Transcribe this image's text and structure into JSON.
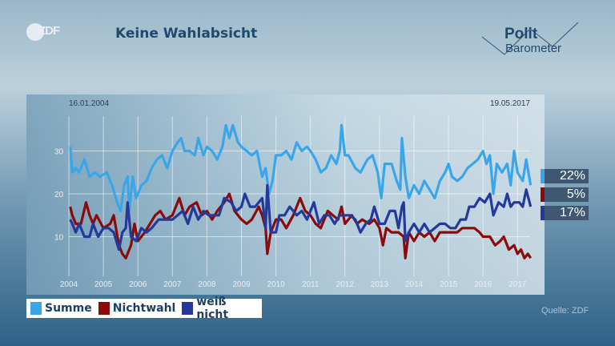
{
  "header": {
    "logo": "ZDF",
    "title": "Keine Wahlabsicht",
    "brand_line1": "Polit",
    "brand_line2": "Barometer"
  },
  "footer": {
    "source": "Quelle: ZDF"
  },
  "current_values": [
    {
      "label": "22%",
      "color": "#3aa6ea"
    },
    {
      "label": "5%",
      "color": "#8b0a0a"
    },
    {
      "label": "17%",
      "color": "#24399a"
    }
  ],
  "chart_data": {
    "type": "line",
    "title": "Keine Wahlabsicht",
    "start_label": "16.01.2004",
    "end_label": "19.05.2017",
    "xlim": [
      2004.04,
      2017.38
    ],
    "ylim": [
      0,
      36
    ],
    "xticks": [
      "2004",
      "2005",
      "2006",
      "2007",
      "2008",
      "2009",
      "2010",
      "2011",
      "2012",
      "2013",
      "2014",
      "2015",
      "2016",
      "2017"
    ],
    "yticks": [
      "10",
      "20",
      "30"
    ],
    "grid": true,
    "legend_placement": "bottom-left",
    "series": [
      {
        "name": "Summe",
        "color": "#3aa6ea",
        "points": [
          [
            2004.04,
            31
          ],
          [
            2004.1,
            25
          ],
          [
            2004.2,
            26
          ],
          [
            2004.3,
            25
          ],
          [
            2004.45,
            28
          ],
          [
            2004.6,
            24
          ],
          [
            2004.75,
            25
          ],
          [
            2004.9,
            24
          ],
          [
            2005.1,
            25
          ],
          [
            2005.25,
            22
          ],
          [
            2005.4,
            18
          ],
          [
            2005.5,
            16
          ],
          [
            2005.6,
            22
          ],
          [
            2005.7,
            24
          ],
          [
            2005.75,
            16
          ],
          [
            2005.85,
            24
          ],
          [
            2005.95,
            19
          ],
          [
            2006.1,
            22
          ],
          [
            2006.25,
            23
          ],
          [
            2006.4,
            26
          ],
          [
            2006.55,
            28
          ],
          [
            2006.7,
            29
          ],
          [
            2006.85,
            26
          ],
          [
            2007.0,
            30
          ],
          [
            2007.15,
            32
          ],
          [
            2007.25,
            33
          ],
          [
            2007.35,
            30
          ],
          [
            2007.5,
            30
          ],
          [
            2007.65,
            29
          ],
          [
            2007.75,
            33
          ],
          [
            2007.9,
            29
          ],
          [
            2008.0,
            31
          ],
          [
            2008.15,
            30
          ],
          [
            2008.3,
            28
          ],
          [
            2008.45,
            31
          ],
          [
            2008.55,
            36
          ],
          [
            2008.65,
            33
          ],
          [
            2008.75,
            36
          ],
          [
            2008.9,
            32
          ],
          [
            2009.0,
            31
          ],
          [
            2009.15,
            30
          ],
          [
            2009.3,
            29
          ],
          [
            2009.45,
            30
          ],
          [
            2009.6,
            24
          ],
          [
            2009.7,
            26
          ],
          [
            2009.8,
            20
          ],
          [
            2009.9,
            23
          ],
          [
            2010.0,
            29
          ],
          [
            2010.15,
            29
          ],
          [
            2010.3,
            30
          ],
          [
            2010.45,
            28
          ],
          [
            2010.6,
            32
          ],
          [
            2010.75,
            30
          ],
          [
            2010.9,
            31
          ],
          [
            2011.0,
            30
          ],
          [
            2011.15,
            28
          ],
          [
            2011.3,
            25
          ],
          [
            2011.45,
            26
          ],
          [
            2011.6,
            29
          ],
          [
            2011.75,
            27
          ],
          [
            2011.85,
            30
          ],
          [
            2011.9,
            36
          ],
          [
            2012.0,
            29
          ],
          [
            2012.1,
            29
          ],
          [
            2012.3,
            26
          ],
          [
            2012.45,
            25
          ],
          [
            2012.65,
            28
          ],
          [
            2012.8,
            29
          ],
          [
            2012.95,
            25
          ],
          [
            2013.05,
            19
          ],
          [
            2013.15,
            27
          ],
          [
            2013.35,
            27
          ],
          [
            2013.5,
            23
          ],
          [
            2013.6,
            21
          ],
          [
            2013.65,
            33
          ],
          [
            2013.75,
            24
          ],
          [
            2013.85,
            19
          ],
          [
            2014.0,
            22
          ],
          [
            2014.15,
            20
          ],
          [
            2014.3,
            23
          ],
          [
            2014.45,
            21
          ],
          [
            2014.6,
            19
          ],
          [
            2014.75,
            23
          ],
          [
            2014.9,
            25
          ],
          [
            2015.0,
            27
          ],
          [
            2015.1,
            24
          ],
          [
            2015.25,
            23
          ],
          [
            2015.4,
            24
          ],
          [
            2015.55,
            26
          ],
          [
            2015.7,
            27
          ],
          [
            2015.85,
            28
          ],
          [
            2016.0,
            30
          ],
          [
            2016.1,
            27
          ],
          [
            2016.2,
            29
          ],
          [
            2016.3,
            20
          ],
          [
            2016.4,
            27
          ],
          [
            2016.55,
            25
          ],
          [
            2016.7,
            27
          ],
          [
            2016.8,
            22
          ],
          [
            2016.9,
            30
          ],
          [
            2017.0,
            25
          ],
          [
            2017.15,
            23
          ],
          [
            2017.25,
            28
          ],
          [
            2017.38,
            22
          ]
        ]
      },
      {
        "name": "Nichtwahl",
        "color": "#8b0a0a",
        "points": [
          [
            2004.04,
            17
          ],
          [
            2004.1,
            15
          ],
          [
            2004.2,
            13
          ],
          [
            2004.35,
            13
          ],
          [
            2004.5,
            18
          ],
          [
            2004.6,
            15
          ],
          [
            2004.7,
            13
          ],
          [
            2004.8,
            15
          ],
          [
            2005.0,
            12
          ],
          [
            2005.2,
            13
          ],
          [
            2005.3,
            15
          ],
          [
            2005.45,
            8
          ],
          [
            2005.55,
            6
          ],
          [
            2005.65,
            5
          ],
          [
            2005.8,
            8
          ],
          [
            2005.9,
            13
          ],
          [
            2006.0,
            9
          ],
          [
            2006.2,
            11
          ],
          [
            2006.35,
            13
          ],
          [
            2006.5,
            15
          ],
          [
            2006.65,
            16
          ],
          [
            2006.8,
            14
          ],
          [
            2007.0,
            15
          ],
          [
            2007.2,
            19
          ],
          [
            2007.35,
            15
          ],
          [
            2007.5,
            17
          ],
          [
            2007.7,
            18
          ],
          [
            2007.85,
            15
          ],
          [
            2008.0,
            16
          ],
          [
            2008.15,
            14
          ],
          [
            2008.3,
            16
          ],
          [
            2008.5,
            18
          ],
          [
            2008.65,
            20
          ],
          [
            2008.8,
            16
          ],
          [
            2009.0,
            14
          ],
          [
            2009.15,
            13
          ],
          [
            2009.3,
            14
          ],
          [
            2009.5,
            17
          ],
          [
            2009.6,
            15
          ],
          [
            2009.7,
            12
          ],
          [
            2009.75,
            6
          ],
          [
            2009.85,
            11
          ],
          [
            2010.0,
            14
          ],
          [
            2010.15,
            14
          ],
          [
            2010.3,
            12
          ],
          [
            2010.5,
            15
          ],
          [
            2010.7,
            19
          ],
          [
            2010.85,
            16
          ],
          [
            2011.0,
            15
          ],
          [
            2011.15,
            13
          ],
          [
            2011.3,
            12
          ],
          [
            2011.5,
            16
          ],
          [
            2011.65,
            15
          ],
          [
            2011.8,
            14
          ],
          [
            2011.9,
            17
          ],
          [
            2012.0,
            13
          ],
          [
            2012.2,
            15
          ],
          [
            2012.35,
            13
          ],
          [
            2012.5,
            14
          ],
          [
            2012.7,
            13
          ],
          [
            2012.85,
            14
          ],
          [
            2013.0,
            12
          ],
          [
            2013.1,
            8
          ],
          [
            2013.2,
            12
          ],
          [
            2013.35,
            11
          ],
          [
            2013.55,
            11
          ],
          [
            2013.7,
            10
          ],
          [
            2013.75,
            5
          ],
          [
            2013.85,
            11
          ],
          [
            2014.0,
            9
          ],
          [
            2014.15,
            11
          ],
          [
            2014.3,
            10
          ],
          [
            2014.45,
            11
          ],
          [
            2014.6,
            9
          ],
          [
            2014.75,
            11
          ],
          [
            2014.9,
            11
          ],
          [
            2015.1,
            11
          ],
          [
            2015.25,
            11
          ],
          [
            2015.4,
            12
          ],
          [
            2015.55,
            12
          ],
          [
            2015.75,
            12
          ],
          [
            2015.9,
            11
          ],
          [
            2016.0,
            10
          ],
          [
            2016.2,
            10
          ],
          [
            2016.35,
            8
          ],
          [
            2016.5,
            9
          ],
          [
            2016.6,
            10
          ],
          [
            2016.75,
            7
          ],
          [
            2016.9,
            8
          ],
          [
            2017.0,
            6
          ],
          [
            2017.1,
            7
          ],
          [
            2017.2,
            5
          ],
          [
            2017.3,
            6
          ],
          [
            2017.38,
            5
          ]
        ]
      },
      {
        "name": "weiß nicht",
        "color": "#24399a",
        "points": [
          [
            2004.04,
            14
          ],
          [
            2004.1,
            13
          ],
          [
            2004.2,
            11
          ],
          [
            2004.3,
            13
          ],
          [
            2004.45,
            10
          ],
          [
            2004.6,
            10
          ],
          [
            2004.7,
            13
          ],
          [
            2004.85,
            10
          ],
          [
            2005.0,
            12
          ],
          [
            2005.15,
            12
          ],
          [
            2005.3,
            11
          ],
          [
            2005.45,
            7
          ],
          [
            2005.55,
            11
          ],
          [
            2005.65,
            12
          ],
          [
            2005.7,
            18
          ],
          [
            2005.8,
            10
          ],
          [
            2005.95,
            9
          ],
          [
            2006.1,
            12
          ],
          [
            2006.25,
            11
          ],
          [
            2006.4,
            12
          ],
          [
            2006.6,
            14
          ],
          [
            2006.8,
            14
          ],
          [
            2007.0,
            14
          ],
          [
            2007.15,
            15
          ],
          [
            2007.3,
            16
          ],
          [
            2007.45,
            13
          ],
          [
            2007.6,
            17
          ],
          [
            2007.75,
            14
          ],
          [
            2007.9,
            16
          ],
          [
            2008.05,
            15
          ],
          [
            2008.2,
            15
          ],
          [
            2008.35,
            15
          ],
          [
            2008.5,
            19
          ],
          [
            2008.7,
            18
          ],
          [
            2008.85,
            16
          ],
          [
            2009.0,
            17
          ],
          [
            2009.1,
            20
          ],
          [
            2009.25,
            17
          ],
          [
            2009.4,
            17
          ],
          [
            2009.6,
            19
          ],
          [
            2009.7,
            12
          ],
          [
            2009.75,
            22
          ],
          [
            2009.85,
            11
          ],
          [
            2010.0,
            11
          ],
          [
            2010.1,
            15
          ],
          [
            2010.25,
            15
          ],
          [
            2010.4,
            17
          ],
          [
            2010.6,
            15
          ],
          [
            2010.75,
            16
          ],
          [
            2010.9,
            14
          ],
          [
            2011.0,
            16
          ],
          [
            2011.1,
            18
          ],
          [
            2011.25,
            13
          ],
          [
            2011.4,
            15
          ],
          [
            2011.55,
            15
          ],
          [
            2011.7,
            13
          ],
          [
            2011.85,
            15
          ],
          [
            2012.0,
            15
          ],
          [
            2012.15,
            15
          ],
          [
            2012.3,
            14
          ],
          [
            2012.45,
            11
          ],
          [
            2012.6,
            13
          ],
          [
            2012.75,
            14
          ],
          [
            2012.85,
            17
          ],
          [
            2013.0,
            13
          ],
          [
            2013.15,
            13
          ],
          [
            2013.3,
            16
          ],
          [
            2013.45,
            16
          ],
          [
            2013.55,
            12
          ],
          [
            2013.65,
            17
          ],
          [
            2013.7,
            18
          ],
          [
            2013.75,
            9
          ],
          [
            2013.85,
            11
          ],
          [
            2014.0,
            13
          ],
          [
            2014.15,
            11
          ],
          [
            2014.3,
            13
          ],
          [
            2014.45,
            11
          ],
          [
            2014.6,
            12
          ],
          [
            2014.75,
            13
          ],
          [
            2014.9,
            13
          ],
          [
            2015.05,
            12
          ],
          [
            2015.2,
            12
          ],
          [
            2015.35,
            14
          ],
          [
            2015.5,
            14
          ],
          [
            2015.6,
            17
          ],
          [
            2015.75,
            17
          ],
          [
            2015.9,
            19
          ],
          [
            2016.05,
            18
          ],
          [
            2016.2,
            20
          ],
          [
            2016.3,
            15
          ],
          [
            2016.45,
            18
          ],
          [
            2016.6,
            17
          ],
          [
            2016.7,
            20
          ],
          [
            2016.8,
            17
          ],
          [
            2016.9,
            18
          ],
          [
            2017.05,
            18
          ],
          [
            2017.15,
            17
          ],
          [
            2017.25,
            21
          ],
          [
            2017.38,
            17
          ]
        ]
      }
    ]
  }
}
